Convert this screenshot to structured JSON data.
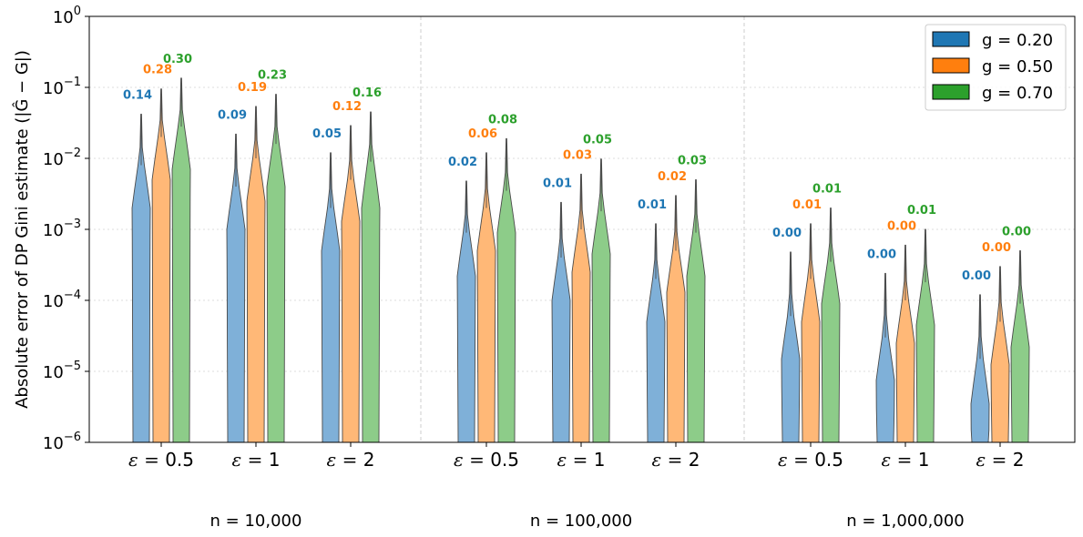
{
  "chart_data": {
    "type": "violin",
    "ylabel": "Absolute error of DP Gini estimate (|Ĝ − G|)",
    "yscale": "log",
    "ylim": [
      1e-06,
      1
    ],
    "y_ticks": [
      {
        "base": "10",
        "exp": "−6",
        "value": 1e-06
      },
      {
        "base": "10",
        "exp": "−5",
        "value": 1e-05
      },
      {
        "base": "10",
        "exp": "−4",
        "value": 0.0001
      },
      {
        "base": "10",
        "exp": "−3",
        "value": 0.001
      },
      {
        "base": "10",
        "exp": "−2",
        "value": 0.01
      },
      {
        "base": "10",
        "exp": "−1",
        "value": 0.1
      },
      {
        "base": "10",
        "exp": "0",
        "value": 1
      }
    ],
    "legend": {
      "position": "top-right",
      "entries": [
        {
          "label": "g = 0.20",
          "color": "#1f77b4",
          "fill": "#7fb0d8"
        },
        {
          "label": "g = 0.50",
          "color": "#ff7f0e",
          "fill": "#ffb877"
        },
        {
          "label": "g = 0.70",
          "color": "#2ca02c",
          "fill": "#8dcc89"
        }
      ]
    },
    "groups": [
      {
        "label": "n = 10,000",
        "epsilons": [
          {
            "eps_prefix": "ε = ",
            "eps_value": "0.5",
            "violins": [
              {
                "max": 0.042,
                "q_low": 0.0008,
                "q_high": 0.008,
                "peak": 0.002,
                "label": "0.14"
              },
              {
                "max": 0.095,
                "q_low": 0.002,
                "q_high": 0.02,
                "peak": 0.005,
                "label": "0.28"
              },
              {
                "max": 0.135,
                "q_low": 0.0028,
                "q_high": 0.028,
                "peak": 0.007,
                "label": "0.30"
              }
            ]
          },
          {
            "eps_prefix": "ε = ",
            "eps_value": "1",
            "violins": [
              {
                "max": 0.022,
                "q_low": 0.0004,
                "q_high": 0.004,
                "peak": 0.001,
                "label": "0.09"
              },
              {
                "max": 0.054,
                "q_low": 0.001,
                "q_high": 0.01,
                "peak": 0.0025,
                "label": "0.19"
              },
              {
                "max": 0.08,
                "q_low": 0.0015,
                "q_high": 0.016,
                "peak": 0.004,
                "label": "0.23"
              }
            ]
          },
          {
            "eps_prefix": "ε = ",
            "eps_value": "2",
            "violins": [
              {
                "max": 0.012,
                "q_low": 0.0002,
                "q_high": 0.002,
                "peak": 0.0005,
                "label": "0.05"
              },
              {
                "max": 0.029,
                "q_low": 0.0005,
                "q_high": 0.005,
                "peak": 0.0013,
                "label": "0.12"
              },
              {
                "max": 0.045,
                "q_low": 0.0009,
                "q_high": 0.009,
                "peak": 0.002,
                "label": "0.16"
              }
            ]
          }
        ]
      },
      {
        "label": "n = 100,000",
        "epsilons": [
          {
            "eps_prefix": "ε = ",
            "eps_value": "0.5",
            "violins": [
              {
                "max": 0.0048,
                "q_low": 9e-05,
                "q_high": 0.0009,
                "peak": 0.00022,
                "label": "0.02"
              },
              {
                "max": 0.012,
                "q_low": 0.0002,
                "q_high": 0.002,
                "peak": 0.0005,
                "label": "0.06"
              },
              {
                "max": 0.019,
                "q_low": 0.00035,
                "q_high": 0.0035,
                "peak": 0.0009,
                "label": "0.08"
              }
            ]
          },
          {
            "eps_prefix": "ε = ",
            "eps_value": "1",
            "violins": [
              {
                "max": 0.0024,
                "q_low": 4e-05,
                "q_high": 0.0004,
                "peak": 0.0001,
                "label": "0.01"
              },
              {
                "max": 0.006,
                "q_low": 0.0001,
                "q_high": 0.001,
                "peak": 0.00025,
                "label": "0.03"
              },
              {
                "max": 0.0098,
                "q_low": 0.00018,
                "q_high": 0.0018,
                "peak": 0.00045,
                "label": "0.05"
              }
            ]
          },
          {
            "eps_prefix": "ε = ",
            "eps_value": "2",
            "violins": [
              {
                "max": 0.0012,
                "q_low": 2e-05,
                "q_high": 0.0002,
                "peak": 5e-05,
                "label": "0.01"
              },
              {
                "max": 0.003,
                "q_low": 5e-05,
                "q_high": 0.0005,
                "peak": 0.00013,
                "label": "0.02"
              },
              {
                "max": 0.005,
                "q_low": 9e-05,
                "q_high": 0.0009,
                "peak": 0.00022,
                "label": "0.03"
              }
            ]
          }
        ]
      },
      {
        "label": "n = 1,000,000",
        "epsilons": [
          {
            "eps_prefix": "ε = ",
            "eps_value": "0.5",
            "violins": [
              {
                "max": 0.00048,
                "q_low": 6e-06,
                "q_high": 6e-05,
                "peak": 1.5e-05,
                "label": "0.00"
              },
              {
                "max": 0.0012,
                "q_low": 2e-05,
                "q_high": 0.0002,
                "peak": 5e-05,
                "label": "0.01"
              },
              {
                "max": 0.002,
                "q_low": 3.5e-05,
                "q_high": 0.00035,
                "peak": 9e-05,
                "label": "0.01"
              }
            ]
          },
          {
            "eps_prefix": "ε = ",
            "eps_value": "1",
            "violins": [
              {
                "max": 0.00024,
                "q_low": 3e-06,
                "q_high": 3e-05,
                "peak": 7.5e-06,
                "label": "0.00"
              },
              {
                "max": 0.0006,
                "q_low": 1e-05,
                "q_high": 0.0001,
                "peak": 2.5e-05,
                "label": "0.00"
              },
              {
                "max": 0.001,
                "q_low": 1.8e-05,
                "q_high": 0.00018,
                "peak": 4.5e-05,
                "label": "0.01"
              }
            ]
          },
          {
            "eps_prefix": "ε = ",
            "eps_value": "2",
            "violins": [
              {
                "max": 0.00012,
                "q_low": 1.5e-06,
                "q_high": 1.5e-05,
                "peak": 3.5e-06,
                "label": "0.00"
              },
              {
                "max": 0.0003,
                "q_low": 5e-06,
                "q_high": 5e-05,
                "peak": 1.25e-05,
                "label": "0.00"
              },
              {
                "max": 0.0005,
                "q_low": 9e-06,
                "q_high": 9e-05,
                "peak": 2.2e-05,
                "label": "0.00"
              }
            ]
          }
        ]
      }
    ]
  }
}
